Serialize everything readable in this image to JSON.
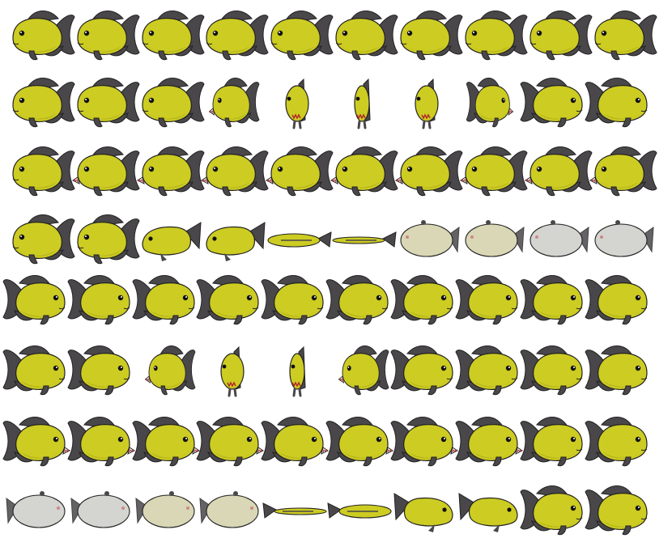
{
  "sprite_sheet": {
    "subject": "piranha-fish-sprite",
    "background": "#ffffff",
    "colors": {
      "body": "#cdcc22",
      "body_shade": "#a8a71a",
      "fin": "#4a474a",
      "outline": "#222222",
      "pale_body": "#d9d7b5",
      "grey_body": "#d4d4d0",
      "mouth": "#b3262a"
    },
    "rows": [
      {
        "name": "swim-left",
        "frames": [
          "side",
          "side",
          "side",
          "side",
          "side",
          "side",
          "side",
          "side",
          "side",
          "side"
        ]
      },
      {
        "name": "turn-left-to-right",
        "frames": [
          "side",
          "side",
          "side",
          "angled",
          "front",
          "front-narrow",
          "front",
          "angled-back",
          "side-flip",
          "side-flip"
        ]
      },
      {
        "name": "bite-left",
        "frames": [
          "side",
          "open",
          "open",
          "open",
          "open",
          "open",
          "open",
          "open",
          "open",
          "open"
        ]
      },
      {
        "name": "die-left",
        "frames": [
          "side",
          "side",
          "tilt",
          "roll",
          "flat",
          "flat-thin",
          "belly-pale",
          "belly-pale",
          "belly-grey",
          "belly-grey"
        ]
      },
      {
        "name": "swim-right",
        "frames": [
          "side-r",
          "side-r",
          "side-r",
          "side-r",
          "side-r",
          "side-r",
          "side-r",
          "side-r",
          "side-r",
          "side-r"
        ]
      },
      {
        "name": "turn-right-to-left",
        "frames": [
          "side-r",
          "side-r",
          "angled-r",
          "front",
          "front-narrow",
          "angled-r",
          "side-r",
          "side-r",
          "side-r",
          "side-r"
        ]
      },
      {
        "name": "bite-right",
        "frames": [
          "open-r",
          "open-r",
          "open-r",
          "open-r",
          "open-r",
          "open-r",
          "open-r",
          "open-r",
          "side-r",
          "side-r"
        ]
      },
      {
        "name": "die-right",
        "frames": [
          "belly-grey-r",
          "belly-grey-r",
          "belly-pale-r",
          "belly-pale-r",
          "flat-thin-r",
          "flat-r",
          "roll-r",
          "tilt-r",
          "side-r",
          "side-r"
        ]
      }
    ]
  }
}
